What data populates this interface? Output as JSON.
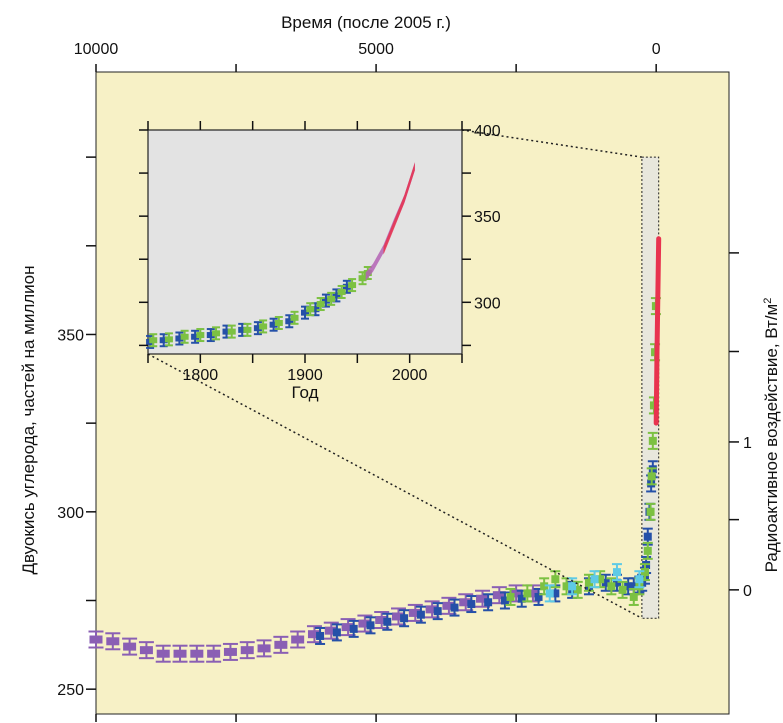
{
  "colors": {
    "outer_background": "#f7f1c6",
    "inset_background": "#e3e3e3",
    "purple_series": "#8a5fb4",
    "blue_series": "#2550a8",
    "green_series": "#7cc142",
    "light_blue_series": "#5ecae6",
    "red_series": "#e8334f",
    "magenta_series": "#b463b5"
  },
  "chart_data": [
    {
      "type": "scatter",
      "title": "",
      "top_xlabel": "Время (после 2005 г.)",
      "top_x_ticks": [
        {
          "value": 10000,
          "label": "10000"
        },
        {
          "value": 7500,
          "label": ""
        },
        {
          "value": 5000,
          "label": "5000"
        },
        {
          "value": 2500,
          "label": ""
        },
        {
          "value": 0,
          "label": "0"
        }
      ],
      "xlim": [
        10000,
        -1300
      ],
      "ylabel": "Двуокись углерода, частей на миллион",
      "ylim": [
        243,
        424
      ],
      "y_ticks": [
        {
          "value": 250,
          "label": "250"
        },
        {
          "value": 275,
          "label": ""
        },
        {
          "value": 300,
          "label": "300"
        },
        {
          "value": 325,
          "label": ""
        },
        {
          "value": 350,
          "label": "350"
        },
        {
          "value": 375,
          "label": ""
        },
        {
          "value": 400,
          "label": ""
        }
      ],
      "right_ylabel": "Радиоактивное воздействие, Вт/м",
      "right_ylabel_superscript": "2",
      "right_ticks": [
        {
          "co2": 278,
          "label": "0"
        },
        {
          "co2": 297.8,
          "label": ""
        },
        {
          "co2": 319.7,
          "label": "1"
        },
        {
          "co2": 345.2,
          "label": ""
        },
        {
          "co2": 373.0,
          "label": ""
        }
      ],
      "grid": false,
      "series": [
        {
          "color": "purple_series",
          "style": "bars",
          "x": [
            10000,
            9700,
            9400,
            9100,
            8800,
            8500,
            8200,
            7900,
            7600,
            7300,
            7000,
            6700,
            6400,
            6100,
            5800,
            5500,
            5200,
            4900,
            4600,
            4300,
            4000,
            3700,
            3400,
            3100,
            2800,
            2500,
            2200
          ],
          "y": [
            264,
            263.5,
            262,
            261,
            260,
            260,
            260,
            260,
            260.5,
            261,
            261.5,
            262.5,
            264,
            265.5,
            266.5,
            267.5,
            268.5,
            269.5,
            270.5,
            271.5,
            272.5,
            273.5,
            274.5,
            275.5,
            276.5,
            277,
            277
          ]
        },
        {
          "color": "blue_series",
          "style": "bars",
          "x": [
            6000,
            5700,
            5400,
            5100,
            4800,
            4500,
            4200,
            3900,
            3600,
            3300,
            3000,
            2700,
            2400,
            2100,
            1800,
            1500,
            1200,
            900,
            700,
            500,
            400,
            300,
            250,
            200,
            180,
            150,
            120,
            90,
            60
          ],
          "y": [
            265,
            266,
            267,
            268,
            269,
            270,
            271,
            272,
            273,
            274,
            274.5,
            275,
            275.5,
            276,
            277,
            278,
            279,
            280,
            280,
            279,
            279,
            279.5,
            280,
            282,
            285,
            293,
            300,
            308,
            312
          ]
        },
        {
          "color": "green_series",
          "style": "bars",
          "x": [
            2600,
            2300,
            2000,
            1800,
            1600,
            1400,
            1200,
            1000,
            800,
            600,
            400,
            300,
            200,
            150,
            100,
            80,
            60,
            40,
            20,
            5
          ],
          "y": [
            276,
            277,
            279,
            281,
            279,
            278,
            280,
            281,
            279,
            278,
            276,
            279,
            283,
            289,
            300,
            310,
            320,
            330,
            345,
            358
          ]
        },
        {
          "color": "light_blue_series",
          "style": "bars",
          "x": [
            1900,
            1500,
            1100,
            700,
            300
          ],
          "y": [
            277,
            279,
            281,
            283,
            281
          ]
        },
        {
          "color": "red_series",
          "style": "line",
          "x": [
            0,
            -15,
            -30,
            -45
          ],
          "y": [
            325,
            345,
            362,
            377
          ]
        }
      ],
      "inset_link": "dotted"
    },
    {
      "type": "scatter",
      "title": "",
      "xlabel": "Год",
      "x_ticks": [
        {
          "value": 1750,
          "label": ""
        },
        {
          "value": 1800,
          "label": "1800"
        },
        {
          "value": 1850,
          "label": ""
        },
        {
          "value": 1900,
          "label": "1900"
        },
        {
          "value": 1950,
          "label": ""
        },
        {
          "value": 2000,
          "label": "2000"
        },
        {
          "value": 2050,
          "label": ""
        }
      ],
      "xlim": [
        1750,
        2050
      ],
      "ylim": [
        270,
        400
      ],
      "y_ticks": [
        {
          "value": 275,
          "label": ""
        },
        {
          "value": 300,
          "label": "300"
        },
        {
          "value": 325,
          "label": ""
        },
        {
          "value": 350,
          "label": "350"
        },
        {
          "value": 375,
          "label": ""
        },
        {
          "value": 400,
          "label": "400"
        }
      ],
      "y_axis_side": "right",
      "series": [
        {
          "color": "blue_series",
          "style": "bars",
          "x": [
            1752,
            1765,
            1780,
            1795,
            1810,
            1825,
            1840,
            1855,
            1870,
            1885,
            1900,
            1910,
            1920,
            1930,
            1940
          ],
          "y": [
            277,
            278,
            279,
            280,
            281,
            283,
            284,
            285,
            287,
            289,
            294,
            296,
            301,
            304,
            309
          ]
        },
        {
          "color": "green_series",
          "style": "bars",
          "x": [
            1755,
            1770,
            1785,
            1800,
            1815,
            1830,
            1845,
            1860,
            1875,
            1890,
            1905,
            1915,
            1925,
            1935,
            1945,
            1955,
            1960
          ],
          "y": [
            278,
            278.5,
            280,
            281,
            282,
            283,
            284,
            286,
            288,
            291,
            296,
            299,
            302,
            306,
            310,
            314,
            317
          ]
        },
        {
          "color": "magenta_series",
          "style": "band",
          "x": [
            1958,
            1965,
            1975,
            1985,
            1995,
            2005
          ],
          "y": [
            315,
            320,
            331,
            346,
            360,
            379
          ]
        },
        {
          "color": "red_series",
          "style": "band",
          "x": [
            1975,
            1985,
            1995,
            2005
          ],
          "y": [
            330,
            345,
            360,
            379
          ]
        }
      ]
    }
  ]
}
